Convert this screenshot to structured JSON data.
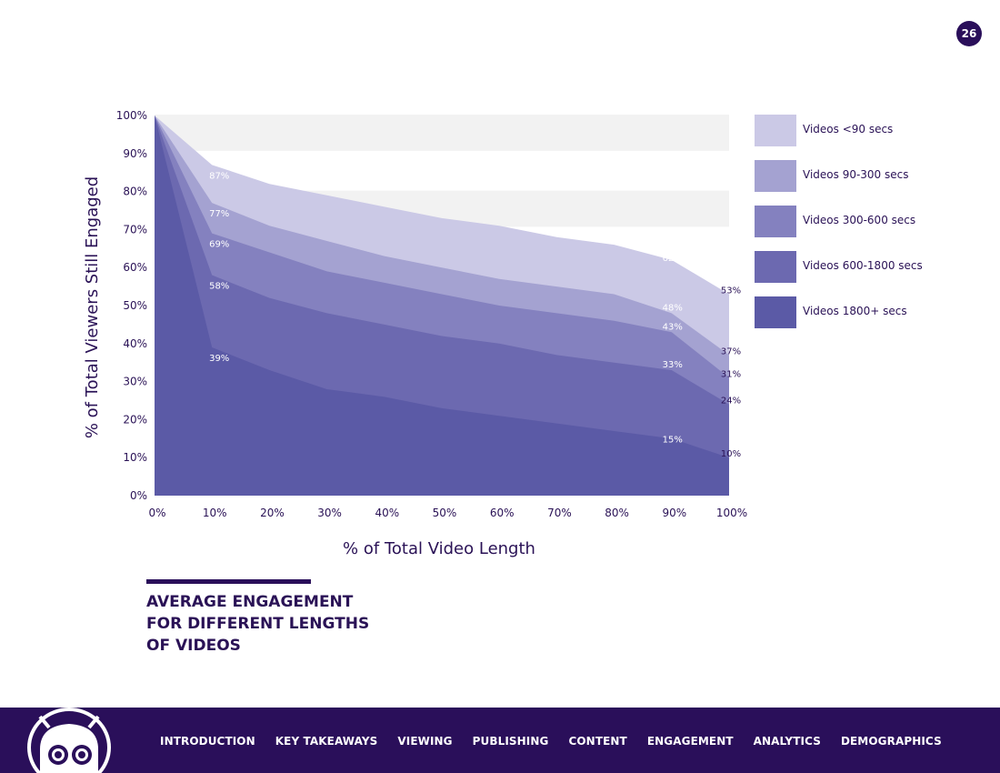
{
  "page_number": "26",
  "caption": "AVERAGE ENGAGEMENT\nFOR DIFFERENT LENGTHS\nOF VIDEOS",
  "nav": {
    "items": [
      "INTRODUCTION",
      "KEY TAKEAWAYS",
      "VIEWING",
      "PUBLISHING",
      "CONTENT",
      "ENGAGEMENT",
      "ANALYTICS",
      "DEMOGRAPHICS"
    ]
  },
  "chart_data": {
    "type": "area",
    "xlabel": "% of Total Video Length",
    "ylabel": "% of Total Viewers Still Engaged",
    "x": [
      0,
      10,
      20,
      30,
      40,
      50,
      60,
      70,
      80,
      90,
      100
    ],
    "x_tick_labels": [
      "0%",
      "10%",
      "20%",
      "30%",
      "40%",
      "50%",
      "60%",
      "70%",
      "80%",
      "90%",
      "100%"
    ],
    "y_tick_labels": [
      "0%",
      "10%",
      "20%",
      "30%",
      "40%",
      "50%",
      "60%",
      "70%",
      "80%",
      "90%",
      "100%"
    ],
    "xlim": [
      0,
      100
    ],
    "ylim": [
      0,
      100
    ],
    "grid": "alternating horizontal bands",
    "legend": "right",
    "series": [
      {
        "name": "Videos <90 secs",
        "color": "#cbc9e6",
        "values": [
          100,
          87,
          82,
          79,
          76,
          73,
          71,
          68,
          66,
          62,
          53
        ]
      },
      {
        "name": "Videos 90-300 secs",
        "color": "#a4a2d1",
        "values": [
          100,
          77,
          71,
          67,
          63,
          60,
          57,
          55,
          53,
          48,
          37
        ]
      },
      {
        "name": "Videos 300-600 secs",
        "color": "#8481bf",
        "values": [
          100,
          69,
          64,
          59,
          56,
          53,
          50,
          48,
          46,
          43,
          31
        ]
      },
      {
        "name": "Videos 600-1800 secs",
        "color": "#6c69b0",
        "values": [
          100,
          58,
          52,
          48,
          45,
          42,
          40,
          37,
          35,
          33,
          24
        ]
      },
      {
        "name": "Videos 1800+ secs",
        "color": "#5b5aa6",
        "values": [
          100,
          39,
          33,
          28,
          26,
          23,
          21,
          19,
          17,
          15,
          10
        ]
      }
    ],
    "annotations": [
      {
        "series": 0,
        "x": 10,
        "text": "87%"
      },
      {
        "series": 1,
        "x": 10,
        "text": "77%"
      },
      {
        "series": 2,
        "x": 10,
        "text": "69%"
      },
      {
        "series": 3,
        "x": 10,
        "text": "58%"
      },
      {
        "series": 4,
        "x": 10,
        "text": "39%"
      },
      {
        "series": 0,
        "x": 90,
        "text": "62%"
      },
      {
        "series": 1,
        "x": 90,
        "text": "48%"
      },
      {
        "series": 2,
        "x": 90,
        "text": "43%"
      },
      {
        "series": 3,
        "x": 90,
        "text": "33%"
      },
      {
        "series": 4,
        "x": 90,
        "text": "15%"
      },
      {
        "series": 0,
        "x": 100,
        "text": "53%"
      },
      {
        "series": 1,
        "x": 100,
        "text": "37%"
      },
      {
        "series": 2,
        "x": 100,
        "text": "31%"
      },
      {
        "series": 3,
        "x": 100,
        "text": "24%"
      },
      {
        "series": 4,
        "x": 100,
        "text": "10%"
      }
    ]
  }
}
